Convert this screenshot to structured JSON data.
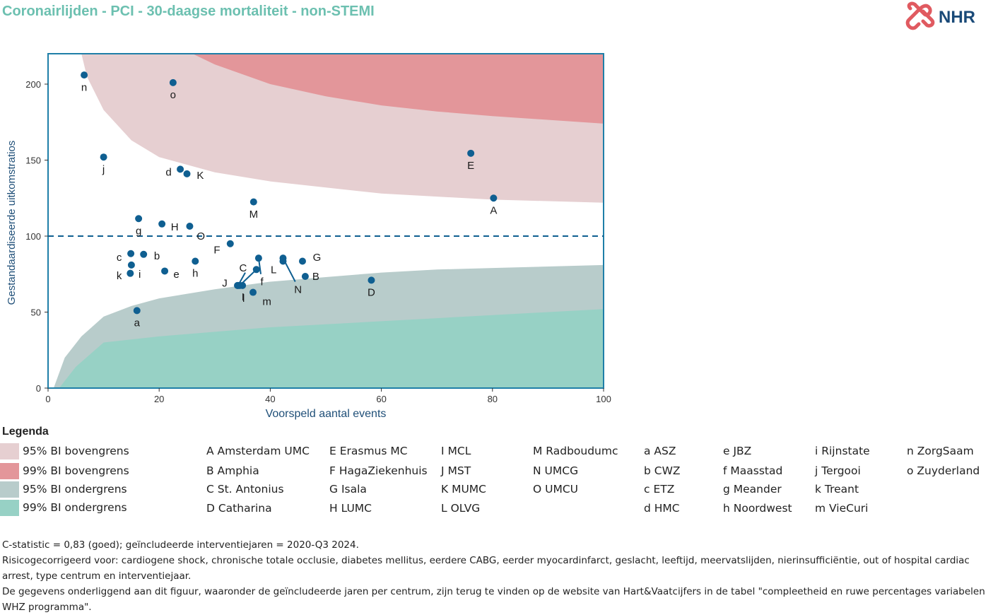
{
  "title": "Coronairlijden - PCI - 30-daagse mortaliteit - non-STEMI",
  "logo": {
    "text": "NHR",
    "color": "#1a4a78",
    "mark_color": "#e05a60"
  },
  "chart_data": {
    "type": "scatter",
    "xlabel": "Voorspeld aantal events",
    "ylabel": "Gestandaardiseerde uitkomstratios",
    "xlim": [
      0,
      100
    ],
    "ylim": [
      0,
      220
    ],
    "xticks": [
      "0",
      "20",
      "40",
      "60",
      "80",
      "100"
    ],
    "yticks": [
      "0",
      "50",
      "100",
      "150",
      "200"
    ],
    "reference_line": 100,
    "bands": {
      "upper95": {
        "name": "95% BI bovengrens",
        "color": "#e6cfd1",
        "points": [
          [
            6,
            220
          ],
          [
            7,
            205
          ],
          [
            10,
            183
          ],
          [
            15,
            163
          ],
          [
            20,
            152
          ],
          [
            30,
            142
          ],
          [
            40,
            136
          ],
          [
            50,
            132
          ],
          [
            60,
            128
          ],
          [
            70,
            126
          ],
          [
            80,
            124
          ],
          [
            100,
            122
          ]
        ]
      },
      "upper99": {
        "name": "99% BI bovengrens",
        "color": "#e3969a",
        "points": [
          [
            26,
            220
          ],
          [
            30,
            213
          ],
          [
            40,
            200
          ],
          [
            50,
            192
          ],
          [
            60,
            186
          ],
          [
            70,
            182
          ],
          [
            80,
            179
          ],
          [
            100,
            174
          ]
        ]
      },
      "lower95": {
        "name": "95% BI ondergrens",
        "color": "#b8cccb",
        "points": [
          [
            1,
            0
          ],
          [
            3,
            20
          ],
          [
            6,
            34
          ],
          [
            10,
            47
          ],
          [
            15,
            54
          ],
          [
            20,
            59
          ],
          [
            30,
            65
          ],
          [
            40,
            70
          ],
          [
            50,
            73
          ],
          [
            60,
            76
          ],
          [
            70,
            78
          ],
          [
            80,
            79
          ],
          [
            100,
            81
          ]
        ]
      },
      "lower99": {
        "name": "99% BI ondergrens",
        "color": "#97d1c5",
        "points": [
          [
            2,
            0
          ],
          [
            5,
            14
          ],
          [
            10,
            30
          ],
          [
            20,
            34
          ],
          [
            30,
            37
          ],
          [
            40,
            40
          ],
          [
            50,
            42
          ],
          [
            60,
            44
          ],
          [
            70,
            46
          ],
          [
            80,
            48
          ],
          [
            100,
            52
          ]
        ]
      }
    },
    "points": [
      {
        "label": "A",
        "x": 80.2,
        "y": 125,
        "lx": 80.2,
        "ly": 117
      },
      {
        "label": "B",
        "x": 46.3,
        "y": 73.5,
        "lx": 48.2,
        "ly": 73.5
      },
      {
        "label": "C",
        "x": 34.2,
        "y": 67.5,
        "lx": 35.1,
        "ly": 79
      },
      {
        "label": "D",
        "x": 58.2,
        "y": 71,
        "lx": 58.2,
        "ly": 63
      },
      {
        "label": "E",
        "x": 76.1,
        "y": 154.5,
        "lx": 76.1,
        "ly": 146.5
      },
      {
        "label": "F",
        "x": 32.8,
        "y": 95,
        "lx": 30.4,
        "ly": 91
      },
      {
        "label": "G",
        "x": 45.8,
        "y": 83.5,
        "lx": 48.4,
        "ly": 86
      },
      {
        "label": "H",
        "x": 20.5,
        "y": 108,
        "lx": 22.8,
        "ly": 106
      },
      {
        "label": "I",
        "x": 34.5,
        "y": 67.5,
        "lx": 35.1,
        "ly": 60
      },
      {
        "label": "J",
        "x": 34.1,
        "y": 67.5,
        "lx": 31.8,
        "ly": 69
      },
      {
        "label": "K",
        "x": 25,
        "y": 141,
        "lx": 27.4,
        "ly": 140
      },
      {
        "label": "L",
        "x": 42.3,
        "y": 83.5,
        "lx": 40.6,
        "ly": 78
      },
      {
        "label": "M",
        "x": 37,
        "y": 122.5,
        "lx": 37,
        "ly": 114.5
      },
      {
        "label": "N",
        "x": 42.3,
        "y": 85.5,
        "lx": 45,
        "ly": 65
      },
      {
        "label": "O",
        "x": 25.5,
        "y": 106.5,
        "lx": 27.5,
        "ly": 100
      },
      {
        "label": "a",
        "x": 16,
        "y": 51,
        "lx": 16,
        "ly": 43
      },
      {
        "label": "b",
        "x": 17.2,
        "y": 88,
        "lx": 19.6,
        "ly": 87
      },
      {
        "label": "c",
        "x": 14.9,
        "y": 88.5,
        "lx": 12.8,
        "ly": 86
      },
      {
        "label": "d",
        "x": 23.8,
        "y": 144,
        "lx": 21.7,
        "ly": 142
      },
      {
        "label": "e",
        "x": 21,
        "y": 77,
        "lx": 23.1,
        "ly": 75
      },
      {
        "label": "f",
        "x": 37.9,
        "y": 85.5,
        "lx": 38.5,
        "ly": 70
      },
      {
        "label": "g",
        "x": 16.3,
        "y": 111.5,
        "lx": 16.3,
        "ly": 103.5
      },
      {
        "label": "h",
        "x": 26.5,
        "y": 83.5,
        "lx": 26.5,
        "ly": 75.5
      },
      {
        "label": "i",
        "x": 15,
        "y": 81,
        "lx": 16.5,
        "ly": 75
      },
      {
        "label": "j",
        "x": 10,
        "y": 152,
        "lx": 10,
        "ly": 144
      },
      {
        "label": "k",
        "x": 14.8,
        "y": 75.5,
        "lx": 12.8,
        "ly": 74
      },
      {
        "label": "l",
        "x": 35,
        "y": 67.5,
        "lx": 35.2,
        "ly": 59
      },
      {
        "label": "m",
        "x": 36.9,
        "y": 63,
        "lx": 39.4,
        "ly": 57
      },
      {
        "label": "n",
        "x": 6.5,
        "y": 206,
        "lx": 6.5,
        "ly": 198
      },
      {
        "label": "o",
        "x": 22.5,
        "y": 201,
        "lx": 22.5,
        "ly": 193
      },
      {
        "label": "p1",
        "x": 37.5,
        "y": 78,
        "hidden_label": true
      }
    ],
    "leaders": [
      {
        "from": [
          34.2,
          67.5
        ],
        "to": [
          35.5,
          76
        ]
      },
      {
        "from": [
          37.9,
          85.5
        ],
        "to": [
          38.3,
          75
        ]
      },
      {
        "from": [
          42.3,
          85.5
        ],
        "to": [
          44.5,
          70
        ]
      },
      {
        "from": [
          34.5,
          67.5
        ],
        "to": [
          37.5,
          78
        ]
      }
    ],
    "colors": {
      "point": "#0f5f91",
      "axis": "#1f7fa8",
      "text": "#1a1a1a",
      "refline": "#0f5f91"
    }
  },
  "legend": {
    "title": "Legenda",
    "swatches": [
      {
        "label": "95% BI bovengrens",
        "color": "#e6cfd1"
      },
      {
        "label": "99% BI bovengrens",
        "color": "#e3969a"
      },
      {
        "label": "95% BI ondergrens",
        "color": "#b8cccb"
      },
      {
        "label": "99% BI ondergrens",
        "color": "#97d1c5"
      }
    ],
    "centres": [
      [
        "A Amsterdam UMC",
        "B Amphia",
        "C St. Antonius",
        "D Catharina"
      ],
      [
        "E Erasmus MC",
        "F HagaZiekenhuis",
        "G Isala",
        "H LUMC"
      ],
      [
        "I MCL",
        "J MST",
        "K MUMC",
        "L OLVG"
      ],
      [
        "M Radboudumc",
        "N UMCG",
        "O UMCU"
      ],
      [
        "a ASZ",
        "b CWZ",
        "c ETZ",
        "d HMC"
      ],
      [
        "e JBZ",
        "f Maasstad",
        "g Meander",
        "h Noordwest"
      ],
      [
        "i Rijnstate",
        "j Tergooi",
        "k Treant",
        "m VieCuri"
      ],
      [
        "n ZorgSaam",
        "o Zuyderland"
      ]
    ]
  },
  "footer": {
    "line1": "C-statistic =  0,83 (goed); geïncludeerde interventiejaren = 2020-Q3 2024.",
    "line2": "Risicogecorrigeerd voor: cardiogene shock, chronische totale occlusie, diabetes mellitus, eerdere CABG, eerder myocardinfarct, geslacht, leeftijd, meervatslijden, nierinsufficiëntie, out of hospital cardiac arrest, type centrum en interventiejaar.",
    "line3": "De gegevens onderliggend aan dit figuur, waaronder de geïncludeerde jaren per centrum, zijn terug te vinden op de website van Hart&Vaatcijfers in de tabel \"compleetheid en ruwe percentages variabelen WHZ programma\"."
  }
}
